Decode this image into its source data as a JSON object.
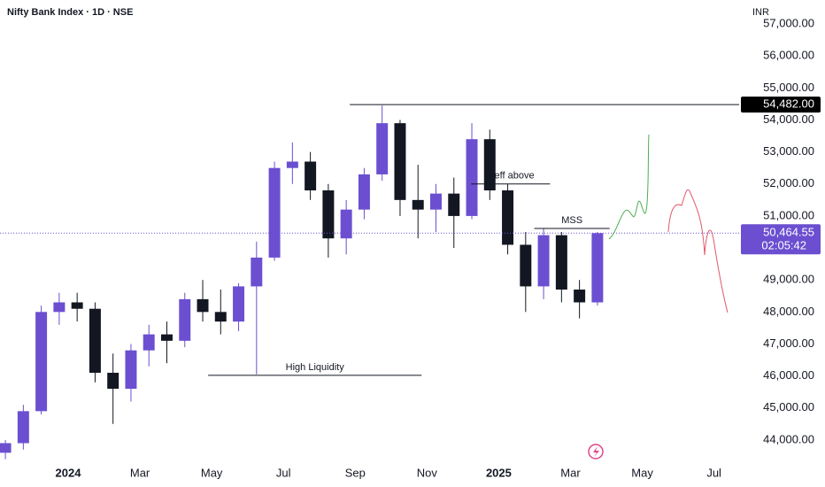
{
  "chart_data": {
    "type": "candlestick",
    "title": "Nifty Bank Index · 1D · NSE",
    "currency": "INR",
    "up_color": "#6b4fd0",
    "down_color": "#131722",
    "xlim": [
      -1.9,
      18.7
    ],
    "xticks": [
      {
        "value": 0,
        "label": "2024"
      },
      {
        "value": 2,
        "label": "Mar"
      },
      {
        "value": 4,
        "label": "May"
      },
      {
        "value": 6,
        "label": "Jul"
      },
      {
        "value": 8,
        "label": "Sep"
      },
      {
        "value": 10,
        "label": "Nov"
      },
      {
        "value": 12,
        "label": "2025"
      },
      {
        "value": 14,
        "label": "Mar"
      },
      {
        "value": 16,
        "label": "May"
      },
      {
        "value": 18,
        "label": "Jul"
      }
    ],
    "ylim": [
      43360,
      57750
    ],
    "yticks": [
      {
        "value": 44000,
        "label": "44,000.00"
      },
      {
        "value": 45000,
        "label": "45,000.00"
      },
      {
        "value": 46000,
        "label": "46,000.00"
      },
      {
        "value": 47000,
        "label": "47,000.00"
      },
      {
        "value": 48000,
        "label": "48,000.00"
      },
      {
        "value": 49000,
        "label": "49,000.00"
      },
      {
        "value": 51000,
        "label": "51,000.00"
      },
      {
        "value": 52000,
        "label": "52,000.00"
      },
      {
        "value": 53000,
        "label": "53,000.00"
      },
      {
        "value": 54000,
        "label": "54,000.00"
      },
      {
        "value": 55000,
        "label": "55,000.00"
      },
      {
        "value": 56000,
        "label": "56,000.00"
      },
      {
        "value": 57000,
        "label": "57,000.00"
      }
    ],
    "x": [
      -1.75,
      -1.25,
      -0.75,
      -0.25,
      0.25,
      0.75,
      1.25,
      1.75,
      2.25,
      2.75,
      3.25,
      3.75,
      4.25,
      4.75,
      5.25,
      5.75,
      6.25,
      6.75,
      7.25,
      7.75,
      8.25,
      8.75,
      9.25,
      9.75,
      10.25,
      10.75,
      11.25,
      11.75,
      12.25,
      12.75,
      13.25,
      13.75,
      14.25,
      14.75
    ],
    "open": [
      43600,
      43900,
      44900,
      48000,
      48300,
      48100,
      46100,
      45600,
      46800,
      47300,
      47100,
      48400,
      48000,
      47700,
      48800,
      49700,
      52500,
      52700,
      51800,
      50300,
      51200,
      52300,
      53900,
      51500,
      51200,
      51700,
      51000,
      53400,
      51800,
      50100,
      48800,
      50400,
      48700,
      48300
    ],
    "high": [
      44000,
      45100,
      48200,
      48600,
      48600,
      48300,
      46700,
      47000,
      47600,
      47700,
      48600,
      49000,
      48700,
      48900,
      50200,
      52700,
      53300,
      53000,
      52000,
      51500,
      52500,
      54450,
      54000,
      52600,
      52000,
      52200,
      53900,
      53700,
      52000,
      50500,
      50600,
      50500,
      49000,
      50500
    ],
    "low": [
      43400,
      43700,
      44800,
      47600,
      47700,
      45800,
      44500,
      45200,
      46300,
      46400,
      46900,
      47700,
      47300,
      47400,
      46050,
      49600,
      52000,
      51500,
      49700,
      49800,
      50900,
      52100,
      51000,
      50300,
      50500,
      50000,
      50900,
      51500,
      49800,
      48000,
      48400,
      48300,
      47800,
      48200
    ],
    "close": [
      43900,
      44900,
      48000,
      48300,
      48100,
      46100,
      45600,
      46800,
      47300,
      47100,
      48400,
      48000,
      47700,
      48800,
      49700,
      52500,
      52700,
      51800,
      50300,
      51200,
      52300,
      53900,
      51500,
      51200,
      51700,
      51000,
      53400,
      51800,
      50100,
      48800,
      50400,
      48700,
      48300,
      50464.55
    ],
    "last_price": {
      "value": 50464.55,
      "label": "50,464.55"
    },
    "countdown": "02:05:42",
    "levels": [
      {
        "value": 54482,
        "label": "54,482.00",
        "x": [
          7.85,
          18.7
        ]
      },
      {
        "value": 52000,
        "label": "ineff above",
        "x": [
          11.23,
          13.43
        ]
      },
      {
        "value": 50610,
        "label": "MSS",
        "x": [
          12.99,
          15.09
        ]
      },
      {
        "value": 46020,
        "label": "High Liquidity",
        "x": [
          3.9,
          9.85
        ]
      }
    ]
  }
}
